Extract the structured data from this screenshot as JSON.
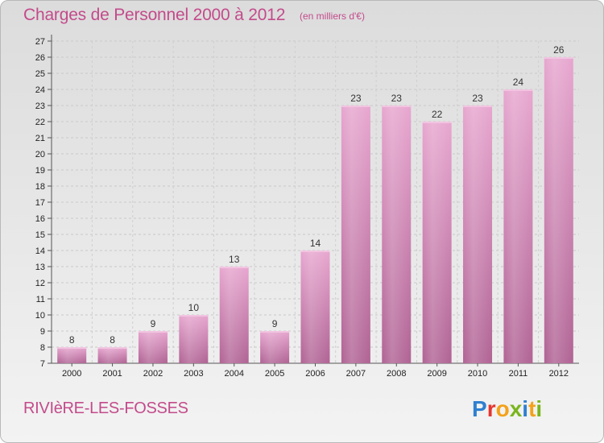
{
  "header": {
    "title": "Charges de Personnel 2000 à 2012",
    "subtitle": "(en milliers d'€)"
  },
  "footer": {
    "commune": "RIVIèRE-LES-FOSSES",
    "logo_text": "Proxiti",
    "logo_colors": [
      "#2f7fd0",
      "#e4352f",
      "#f3a21a",
      "#7ab51d"
    ]
  },
  "chart_data": {
    "type": "bar",
    "title": "Charges de Personnel 2000 à 2012",
    "subtitle": "(en milliers d'€)",
    "xlabel": "",
    "ylabel": "",
    "categories": [
      "2000",
      "2001",
      "2002",
      "2003",
      "2004",
      "2005",
      "2006",
      "2007",
      "2008",
      "2009",
      "2010",
      "2011",
      "2012"
    ],
    "values": [
      8,
      8,
      9,
      10,
      13,
      9,
      14,
      23,
      23,
      22,
      23,
      24,
      26
    ],
    "ylim": [
      7,
      27
    ],
    "yticks": [
      7,
      8,
      9,
      10,
      11,
      12,
      13,
      14,
      15,
      16,
      17,
      18,
      19,
      20,
      21,
      22,
      23,
      24,
      25,
      26,
      27
    ],
    "grid": true,
    "legend": "none",
    "bar_color": "#d98fbd",
    "bar_color_dark": "#b8679a"
  }
}
